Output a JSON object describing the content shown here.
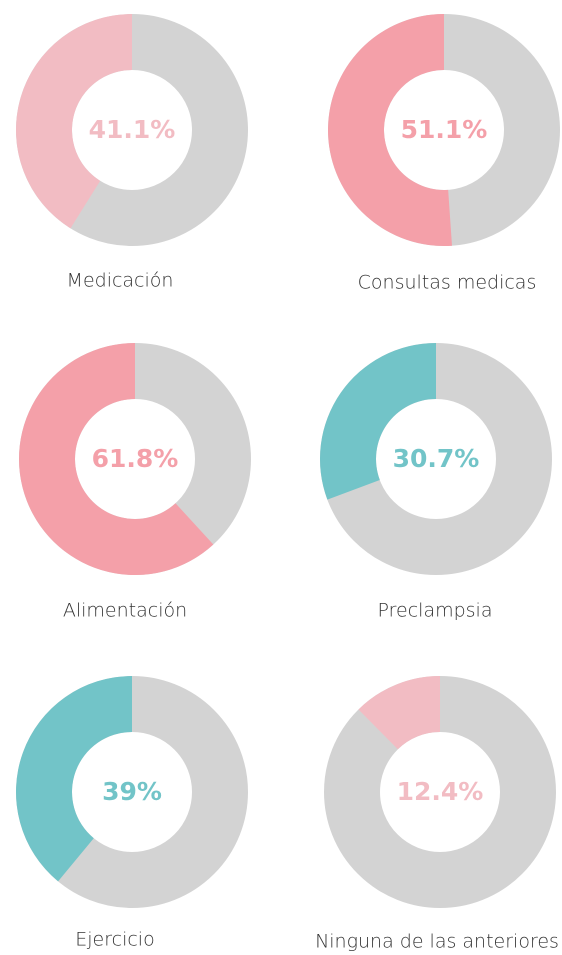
{
  "chart_data": [
    {
      "type": "donut",
      "title": "Medicación",
      "values": [
        41.1
      ],
      "value_labels": [
        "41.1%"
      ],
      "color": "#f2bcc3"
    },
    {
      "type": "donut",
      "title": "Consultas medicas",
      "values": [
        51.1
      ],
      "value_labels": [
        "51.1%"
      ],
      "color": "#f4a0a9"
    },
    {
      "type": "donut",
      "title": "Alimentación",
      "values": [
        61.8
      ],
      "value_labels": [
        "61.8%"
      ],
      "color": "#f4a0a9"
    },
    {
      "type": "donut",
      "title": "Preclampsia",
      "values": [
        30.7
      ],
      "value_labels": [
        "30.7%"
      ],
      "color": "#72c4c8"
    },
    {
      "type": "donut",
      "title": "Ejercicio",
      "values": [
        39
      ],
      "value_labels": [
        "39%"
      ],
      "color": "#72c4c8"
    },
    {
      "type": "donut",
      "title": "Ninguna de las anteriores",
      "values": [
        12.4
      ],
      "value_labels": [
        "12.4%"
      ],
      "color": "#f2bcc3"
    }
  ]
}
